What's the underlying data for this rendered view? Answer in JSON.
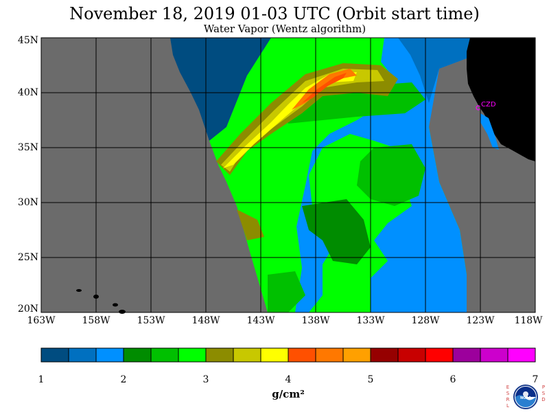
{
  "title": "November 18, 2019  01-03 UTC  (Orbit start time)",
  "subtitle": "Water Vapor (Wentz algorithm)",
  "station_label": "CZD",
  "lat_labels": [
    "45N",
    "40N",
    "35N",
    "30N",
    "25N",
    "20N"
  ],
  "lon_labels": [
    "163W",
    "158W",
    "153W",
    "148W",
    "143W",
    "138W",
    "133W",
    "128W",
    "123W",
    "118W"
  ],
  "colorbar": {
    "units": "g/cm²",
    "ticks": [
      "1",
      "2",
      "3",
      "4",
      "5",
      "6",
      "7"
    ],
    "colors": [
      "#004c80",
      "#0070c0",
      "#0090ff",
      "#008c00",
      "#00c000",
      "#00ff00",
      "#8c8c00",
      "#c8c800",
      "#ffff00",
      "#ff5000",
      "#ff7800",
      "#ffa000",
      "#960000",
      "#c80000",
      "#ff0000",
      "#9c009c",
      "#cc00cc",
      "#ff00ff"
    ]
  },
  "colors": {
    "no_data": "#6b6b6b",
    "land": "#000000",
    "grid": "#000000",
    "station": "#ff00ff"
  },
  "logo": {
    "left_text": "ESRL",
    "right_text": "PSD",
    "center_text": "NOAA"
  }
}
